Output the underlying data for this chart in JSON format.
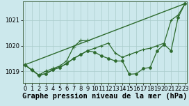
{
  "background_color": "#cce8ec",
  "grid_color": "#aacccc",
  "line_color": "#2d6a2d",
  "xlabel": "Graphe pression niveau de la mer (hPa)",
  "xlabel_fontsize": 7.5,
  "tick_fontsize": 6,
  "ylim": [
    1018.55,
    1021.75
  ],
  "yticks": [
    1019,
    1020,
    1021
  ],
  "xlim": [
    -0.3,
    23.3
  ],
  "series": [
    {
      "x": [
        0,
        23
      ],
      "y": [
        1019.25,
        1021.65
      ],
      "marker": null,
      "lw": 1.0
    },
    {
      "x": [
        0,
        1,
        2,
        3,
        4,
        5,
        6,
        7,
        8,
        9,
        10,
        11,
        12,
        13,
        14,
        15,
        16,
        17,
        18,
        19,
        20,
        21,
        22,
        23
      ],
      "y": [
        1019.25,
        1019.05,
        1018.85,
        1018.9,
        1019.05,
        1019.15,
        1019.3,
        1019.5,
        1019.65,
        1019.8,
        1019.75,
        1019.6,
        1019.5,
        1019.4,
        1019.4,
        1018.88,
        1018.9,
        1019.1,
        1019.15,
        1019.8,
        1020.05,
        1019.8,
        1021.1,
        1021.65
      ],
      "marker": "o",
      "ms": 2.5,
      "lw": 0.9
    },
    {
      "x": [
        0,
        1,
        2,
        3,
        4,
        5,
        6,
        7,
        8,
        9
      ],
      "y": [
        1019.25,
        1019.05,
        1018.85,
        1019.0,
        1019.1,
        1019.2,
        1019.4,
        1019.95,
        1020.2,
        1020.2
      ],
      "marker": "+",
      "ms": 4,
      "lw": 0.9
    },
    {
      "x": [
        0,
        1,
        2,
        3,
        4,
        5,
        6,
        7,
        8,
        9,
        10,
        11,
        12,
        13,
        14,
        15,
        16,
        17,
        18,
        19,
        20,
        21,
        22,
        23
      ],
      "y": [
        1019.25,
        1019.05,
        1018.85,
        1018.9,
        1019.05,
        1019.15,
        1019.3,
        1019.5,
        1019.65,
        1019.8,
        1019.9,
        1020.0,
        1020.1,
        1019.7,
        1019.55,
        1019.65,
        1019.75,
        1019.85,
        1019.9,
        1020.0,
        1020.1,
        1021.0,
        1021.2,
        1021.65
      ],
      "marker": "+",
      "ms": 3,
      "lw": 0.9
    }
  ]
}
